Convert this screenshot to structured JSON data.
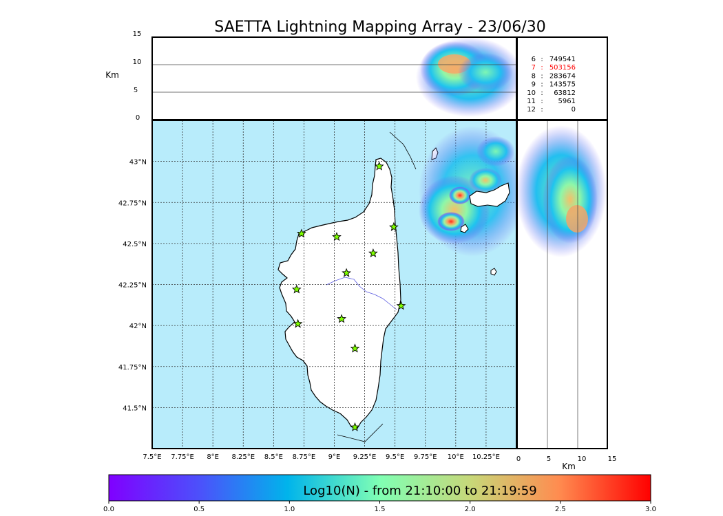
{
  "title": "SAETTA Lightning Mapping Array - 23/06/30",
  "colors": {
    "sea": "#b8ecfb",
    "land": "#ffffff",
    "frame": "#000000",
    "station_star": "#7fff00",
    "highlight_row": "#ff0000"
  },
  "altitude_panel": {
    "ylabel": "Km",
    "yticks": [
      "0",
      "5",
      "10",
      "15"
    ]
  },
  "side_panel": {
    "xlabel": "Km",
    "xticks": [
      "0",
      "5",
      "10",
      "15"
    ]
  },
  "counts_table": [
    {
      "level": "6",
      "count": "749541",
      "highlight": false
    },
    {
      "level": "7",
      "count": "503156",
      "highlight": true
    },
    {
      "level": "8",
      "count": "283674",
      "highlight": false
    },
    {
      "level": "9",
      "count": "143575",
      "highlight": false
    },
    {
      "level": "10",
      "count": "63812",
      "highlight": false
    },
    {
      "level": "11",
      "count": "5961",
      "highlight": false
    },
    {
      "level": "12",
      "count": "0",
      "highlight": false
    }
  ],
  "map": {
    "lon_ticks": [
      "7.5°E",
      "7.75°E",
      "8°E",
      "8.25°E",
      "8.5°E",
      "8.75°E",
      "9°E",
      "9.25°E",
      "9.5°E",
      "9.75°E",
      "10°E",
      "10.25°E"
    ],
    "lat_ticks": [
      "41.5°N",
      "41.75°N",
      "42°N",
      "42.25°N",
      "42.5°N",
      "42.75°N",
      "43°N"
    ]
  },
  "colorbar": {
    "label": "Log10(N) - from 21:10:00 to 21:19:59",
    "ticks": [
      "0.0",
      "0.5",
      "1.0",
      "1.5",
      "2.0",
      "2.5",
      "3.0"
    ],
    "range": [
      0,
      3
    ]
  },
  "chart_data": {
    "type": "heatmap",
    "title": "SAETTA Lightning Mapping Array - 23/06/30",
    "value_label": "Log10(N)",
    "value_range": [
      0,
      3
    ],
    "lon_range": [
      7.5,
      10.5
    ],
    "lat_range": [
      41.25,
      43.25
    ],
    "altitude_range_km": [
      0,
      15
    ],
    "stations": [
      {
        "lon": 9.37,
        "lat": 42.97
      },
      {
        "lon": 8.73,
        "lat": 42.56
      },
      {
        "lon": 9.02,
        "lat": 42.54
      },
      {
        "lon": 9.49,
        "lat": 42.6
      },
      {
        "lon": 9.32,
        "lat": 42.44
      },
      {
        "lon": 9.1,
        "lat": 42.32
      },
      {
        "lon": 8.69,
        "lat": 42.22
      },
      {
        "lon": 9.55,
        "lat": 42.12
      },
      {
        "lon": 9.06,
        "lat": 42.04
      },
      {
        "lon": 8.7,
        "lat": 42.01
      },
      {
        "lon": 9.17,
        "lat": 41.86
      },
      {
        "lon": 9.17,
        "lat": 41.38
      }
    ],
    "lightning_hotspots": [
      {
        "lon": 9.97,
        "lat": 42.65,
        "level": 2.8
      },
      {
        "lon": 10.03,
        "lat": 42.79,
        "level": 2.6
      },
      {
        "lon": 10.22,
        "lat": 42.89,
        "level": 2.0
      },
      {
        "lon": 10.35,
        "lat": 43.1,
        "level": 1.6
      }
    ]
  }
}
